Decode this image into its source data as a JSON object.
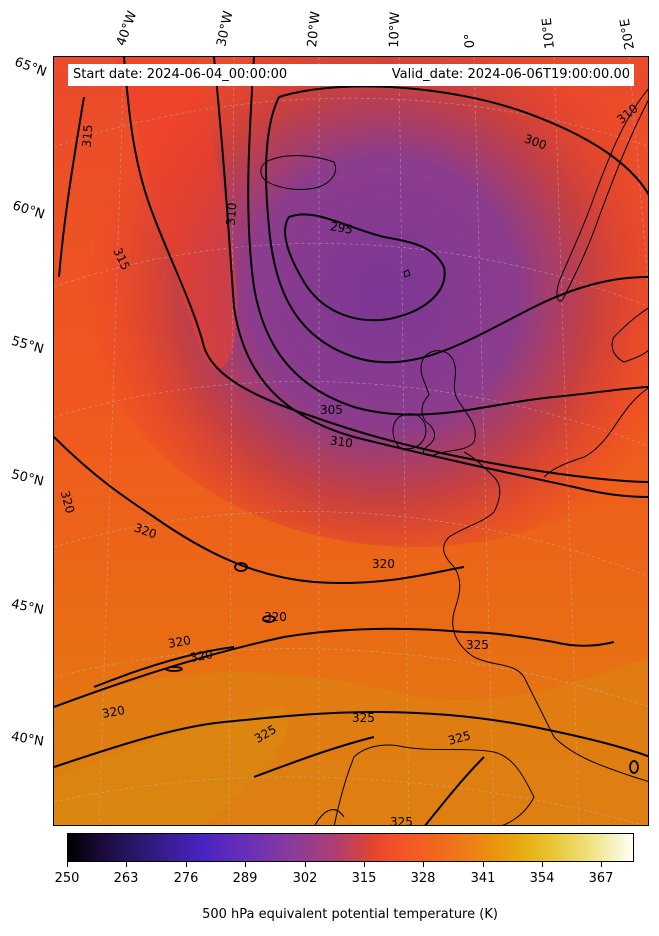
{
  "header": {
    "start_date": "Start date: 2024-06-04_00:00:00",
    "valid_date": "Valid_date: 2024-06-06T19:00:00.00"
  },
  "longitude_labels": [
    "40°W",
    "30°W",
    "20°W",
    "10°W",
    "0°",
    "10°E",
    "20°E"
  ],
  "latitude_labels": [
    "65°N",
    "60°N",
    "55°N",
    "50°N",
    "45°N",
    "40°N"
  ],
  "contour_labels": [
    "315",
    "310",
    "315",
    "300",
    "295",
    "305",
    "310",
    "320",
    "320",
    "320",
    "320",
    "320",
    "320",
    "320",
    "325",
    "325",
    "325",
    "325",
    "325",
    "310"
  ],
  "colorbar": {
    "title": "500 hPa equivalent potential temperature (K)",
    "ticks": [
      "250",
      "263",
      "276",
      "289",
      "302",
      "315",
      "328",
      "341",
      "354",
      "367"
    ],
    "range": [
      250,
      376
    ]
  },
  "colors": {
    "cold": "#7a3a98",
    "mid": "#e8432c",
    "warm": "#f0521f",
    "hot": "#dd7e10"
  }
}
